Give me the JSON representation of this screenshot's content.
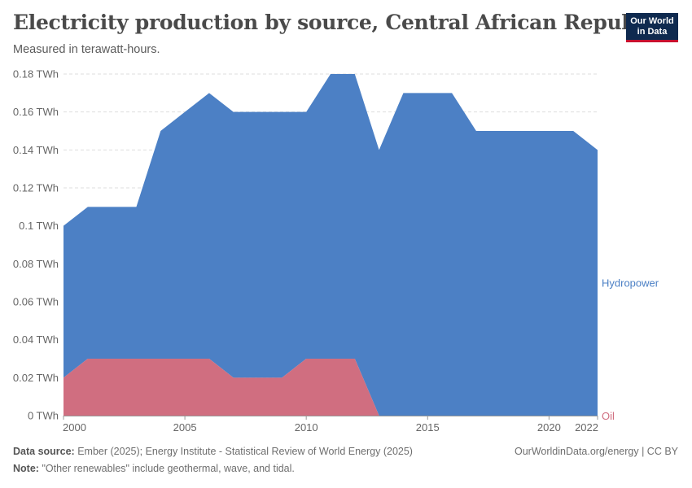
{
  "title": "Electricity production by source, Central African Republic",
  "subtitle": "Measured in terawatt-hours.",
  "logo": {
    "line1": "Our World",
    "line2": "in Data"
  },
  "footer": {
    "source_label": "Data source:",
    "source_text": "Ember (2025); Energy Institute - Statistical Review of World Energy (2025)",
    "note_label": "Note:",
    "note_text": "\"Other renewables\" include geothermal, wave, and tidal.",
    "url_license": "OurWorldinData.org/energy | CC BY"
  },
  "colors": {
    "hydropower": "#4c80c5",
    "oil": "#d06e80",
    "axis_text": "#666666",
    "grid": "#dddddd"
  },
  "chart_data": {
    "type": "area",
    "stacked": true,
    "title": "Electricity production by source, Central African Republic",
    "ylabel": "TWh",
    "ylim": [
      0,
      0.18
    ],
    "xlim": [
      2000,
      2022
    ],
    "x": [
      2000,
      2001,
      2002,
      2003,
      2004,
      2005,
      2006,
      2007,
      2008,
      2009,
      2010,
      2011,
      2012,
      2013,
      2014,
      2015,
      2016,
      2017,
      2018,
      2019,
      2020,
      2021,
      2022
    ],
    "x_ticks": [
      2000,
      2005,
      2010,
      2015,
      2020,
      2022
    ],
    "y_ticks": [
      0,
      0.02,
      0.04,
      0.06,
      0.08,
      0.1,
      0.12,
      0.14,
      0.16,
      0.18
    ],
    "y_tick_labels": [
      "0 TWh",
      "0.02 TWh",
      "0.04 TWh",
      "0.06 TWh",
      "0.08 TWh",
      "0.1 TWh",
      "0.12 TWh",
      "0.14 TWh",
      "0.16 TWh",
      "0.18 TWh"
    ],
    "series": [
      {
        "name": "Oil",
        "values": [
          0.02,
          0.03,
          0.03,
          0.03,
          0.03,
          0.03,
          0.03,
          0.02,
          0.02,
          0.02,
          0.03,
          0.03,
          0.03,
          0,
          0,
          0,
          0,
          0,
          0,
          0,
          0,
          0,
          0
        ]
      },
      {
        "name": "Hydropower",
        "values": [
          0.08,
          0.08,
          0.08,
          0.08,
          0.12,
          0.13,
          0.14,
          0.14,
          0.14,
          0.14,
          0.13,
          0.15,
          0.15,
          0.14,
          0.17,
          0.17,
          0.17,
          0.15,
          0.15,
          0.15,
          0.15,
          0.15,
          0.14
        ]
      }
    ],
    "legend": [
      "Hydropower",
      "Oil"
    ]
  }
}
